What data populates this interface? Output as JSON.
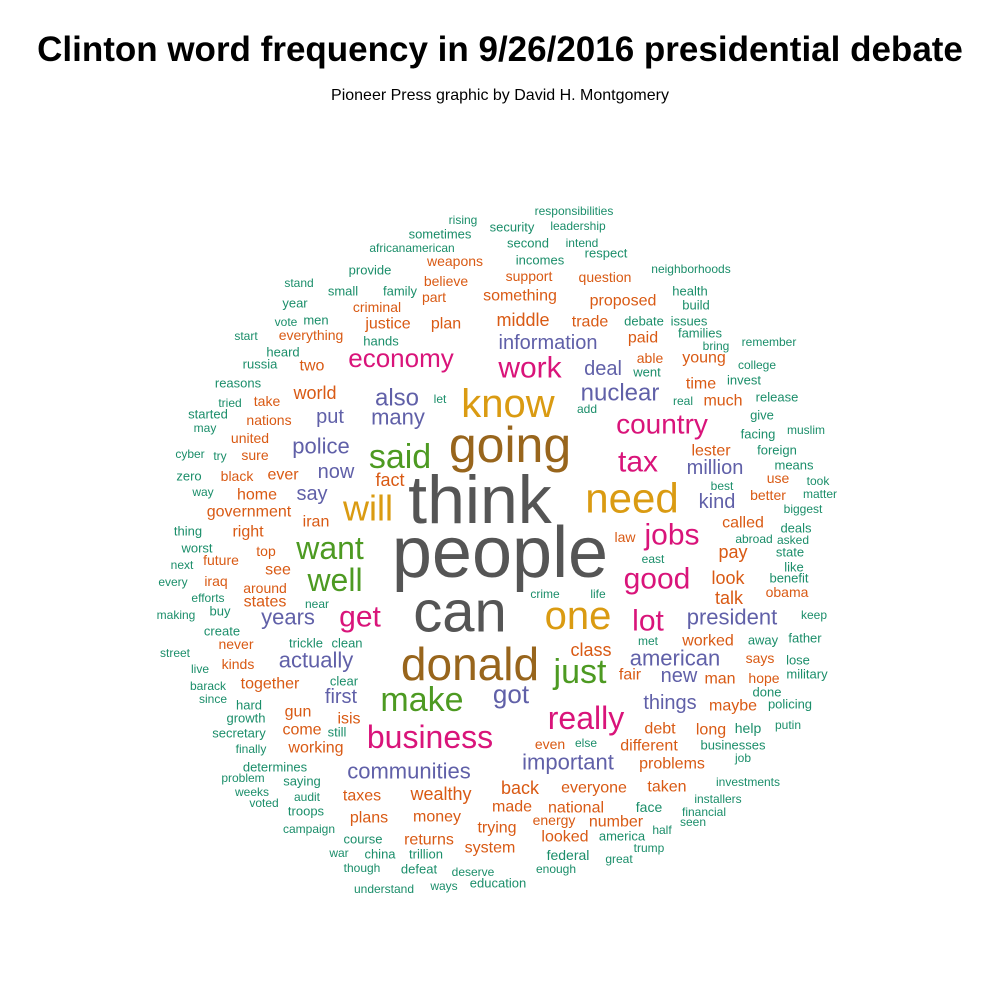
{
  "chart_data": {
    "type": "wordcloud",
    "title": "Clinton word frequency in 9/26/2016 presidential debate",
    "subtitle": "Pioneer Press graphic by David H. Montgomery",
    "words": [
      [
        "people",
        72
      ],
      [
        "think",
        68
      ],
      [
        "can",
        58
      ],
      [
        "going",
        50
      ],
      [
        "donald",
        46
      ],
      [
        "need",
        42
      ],
      [
        "know",
        40
      ],
      [
        "one",
        40
      ],
      [
        "will",
        36
      ],
      [
        "said",
        34
      ],
      [
        "well",
        32
      ],
      [
        "want",
        32
      ],
      [
        "just",
        34
      ],
      [
        "make",
        34
      ],
      [
        "really",
        32
      ],
      [
        "business",
        32
      ],
      [
        "work",
        30
      ],
      [
        "get",
        30
      ],
      [
        "good",
        30
      ],
      [
        "lot",
        30
      ],
      [
        "jobs",
        30
      ],
      [
        "tax",
        30
      ],
      [
        "country",
        28
      ],
      [
        "economy",
        26
      ],
      [
        "got",
        26
      ],
      [
        "also",
        24
      ],
      [
        "nuclear",
        24
      ],
      [
        "president",
        22
      ],
      [
        "years",
        22
      ],
      [
        "important",
        22
      ],
      [
        "american",
        22
      ],
      [
        "communities",
        22
      ],
      [
        "many",
        22
      ],
      [
        "police",
        22
      ],
      [
        "actually",
        22
      ],
      [
        "things",
        20
      ],
      [
        "information",
        20
      ],
      [
        "deal",
        20
      ],
      [
        "first",
        20
      ],
      [
        "put",
        20
      ],
      [
        "new",
        20
      ],
      [
        "now",
        20
      ],
      [
        "say",
        20
      ],
      [
        "million",
        20
      ],
      [
        "kind",
        20
      ],
      [
        "middle",
        18
      ],
      [
        "world",
        18
      ],
      [
        "fact",
        18
      ],
      [
        "back",
        18
      ],
      [
        "wealthy",
        18
      ],
      [
        "look",
        18
      ],
      [
        "talk",
        18
      ],
      [
        "class",
        18
      ],
      [
        "pay",
        18
      ],
      [
        "called",
        16
      ],
      [
        "iran",
        16
      ],
      [
        "right",
        16
      ],
      [
        "see",
        16
      ],
      [
        "states",
        16
      ],
      [
        "home",
        16
      ],
      [
        "ever",
        16
      ],
      [
        "together",
        16
      ],
      [
        "debt",
        16
      ],
      [
        "everyone",
        16
      ],
      [
        "national",
        16
      ],
      [
        "money",
        16
      ],
      [
        "trying",
        16
      ],
      [
        "something",
        16
      ],
      [
        "trade",
        16
      ],
      [
        "taxes",
        16
      ],
      [
        "problems",
        16
      ],
      [
        "different",
        16
      ],
      [
        "worked",
        16
      ],
      [
        "plan",
        16
      ],
      [
        "justice",
        16
      ],
      [
        "isis",
        16
      ],
      [
        "gun",
        16
      ],
      [
        "come",
        16
      ],
      [
        "working",
        16
      ],
      [
        "government",
        16
      ],
      [
        "lester",
        16
      ],
      [
        "much",
        16
      ],
      [
        "paid",
        16
      ],
      [
        "young",
        16
      ],
      [
        "two",
        16
      ],
      [
        "proposed",
        16
      ],
      [
        "time",
        16
      ],
      [
        "able",
        14
      ],
      [
        "made",
        16
      ],
      [
        "plans",
        16
      ],
      [
        "returns",
        16
      ],
      [
        "system",
        16
      ],
      [
        "number",
        16
      ],
      [
        "looked",
        16
      ],
      [
        "energy",
        14
      ],
      [
        "taken",
        16
      ],
      [
        "maybe",
        16
      ],
      [
        "long",
        16
      ],
      [
        "man",
        16
      ],
      [
        "fair",
        16
      ],
      [
        "says",
        14
      ],
      [
        "obama",
        14
      ],
      [
        "law",
        14
      ],
      [
        "better",
        14
      ],
      [
        "use",
        14
      ],
      [
        "hope",
        14
      ],
      [
        "even",
        14
      ],
      [
        "criminal",
        14
      ],
      [
        "part",
        14
      ],
      [
        "believe",
        14
      ],
      [
        "weapons",
        14
      ],
      [
        "support",
        14
      ],
      [
        "question",
        14
      ],
      [
        "everything",
        14
      ],
      [
        "take",
        14
      ],
      [
        "nations",
        14
      ],
      [
        "united",
        14
      ],
      [
        "sure",
        14
      ],
      [
        "black",
        14
      ],
      [
        "future",
        14
      ],
      [
        "top",
        14
      ],
      [
        "iraq",
        14
      ],
      [
        "around",
        14
      ],
      [
        "never",
        14
      ],
      [
        "kinds",
        14
      ],
      [
        "help",
        14
      ],
      [
        "face",
        14
      ],
      [
        "businesses",
        13
      ],
      [
        "federal",
        14
      ],
      [
        "still",
        13
      ],
      [
        "clear",
        13
      ],
      [
        "clean",
        13
      ],
      [
        "trickle",
        13
      ],
      [
        "security",
        13
      ],
      [
        "second",
        13
      ],
      [
        "incomes",
        13
      ],
      [
        "sometimes",
        13
      ],
      [
        "respect",
        13
      ],
      [
        "provide",
        13
      ],
      [
        "small",
        13
      ],
      [
        "family",
        13
      ],
      [
        "men",
        13
      ],
      [
        "hands",
        13
      ],
      [
        "year",
        13
      ],
      [
        "heard",
        13
      ],
      [
        "russia",
        13
      ],
      [
        "reasons",
        13
      ],
      [
        "started",
        13
      ],
      [
        "zero",
        13
      ],
      [
        "thing",
        13
      ],
      [
        "worst",
        13
      ],
      [
        "create",
        13
      ],
      [
        "buy",
        13
      ],
      [
        "secretary",
        13
      ],
      [
        "growth",
        13
      ],
      [
        "hard",
        13
      ],
      [
        "determines",
        13
      ],
      [
        "saying",
        13
      ],
      [
        "troops",
        13
      ],
      [
        "trillion",
        13
      ],
      [
        "course",
        13
      ],
      [
        "china",
        13
      ],
      [
        "defeat",
        13
      ],
      [
        "education",
        13
      ],
      [
        "america",
        13
      ],
      [
        "deals",
        13
      ],
      [
        "state",
        13
      ],
      [
        "benefit",
        13
      ],
      [
        "give",
        13
      ],
      [
        "facing",
        13
      ],
      [
        "foreign",
        13
      ],
      [
        "means",
        13
      ],
      [
        "invest",
        13
      ],
      [
        "went",
        13
      ],
      [
        "release",
        13
      ],
      [
        "families",
        13
      ],
      [
        "health",
        13
      ],
      [
        "build",
        13
      ],
      [
        "debate",
        13
      ],
      [
        "issues",
        13
      ],
      [
        "like",
        13
      ],
      [
        "away",
        13
      ],
      [
        "father",
        13
      ],
      [
        "lose",
        13
      ],
      [
        "military",
        13
      ],
      [
        "done",
        13
      ],
      [
        "policing",
        13
      ],
      [
        "responsibilities",
        12
      ],
      [
        "leadership",
        12
      ],
      [
        "intend",
        12
      ],
      [
        "rising",
        12
      ],
      [
        "africanamerican",
        12
      ],
      [
        "neighborhoods",
        12
      ],
      [
        "stand",
        12
      ],
      [
        "vote",
        12
      ],
      [
        "start",
        12
      ],
      [
        "tried",
        12
      ],
      [
        "may",
        12
      ],
      [
        "cyber",
        12
      ],
      [
        "try",
        12
      ],
      [
        "way",
        12
      ],
      [
        "next",
        12
      ],
      [
        "every",
        12
      ],
      [
        "efforts",
        12
      ],
      [
        "making",
        12
      ],
      [
        "street",
        12
      ],
      [
        "live",
        12
      ],
      [
        "barack",
        12
      ],
      [
        "since",
        12
      ],
      [
        "finally",
        12
      ],
      [
        "problem",
        12
      ],
      [
        "weeks",
        12
      ],
      [
        "voted",
        12
      ],
      [
        "audit",
        12
      ],
      [
        "campaign",
        12
      ],
      [
        "war",
        12
      ],
      [
        "though",
        12
      ],
      [
        "understand",
        12
      ],
      [
        "ways",
        12
      ],
      [
        "deserve",
        12
      ],
      [
        "enough",
        12
      ],
      [
        "great",
        12
      ],
      [
        "trump",
        12
      ],
      [
        "half",
        12
      ],
      [
        "seen",
        12
      ],
      [
        "financial",
        12
      ],
      [
        "installers",
        12
      ],
      [
        "investments",
        12
      ],
      [
        "job",
        12
      ],
      [
        "putin",
        12
      ],
      [
        "keep",
        12
      ],
      [
        "biggest",
        12
      ],
      [
        "matter",
        12
      ],
      [
        "took",
        12
      ],
      [
        "muslim",
        12
      ],
      [
        "college",
        12
      ],
      [
        "remember",
        12
      ],
      [
        "bring",
        12
      ],
      [
        "real",
        12
      ],
      [
        "add",
        12
      ],
      [
        "let",
        12
      ],
      [
        "best",
        12
      ],
      [
        "abroad",
        12
      ],
      [
        "asked",
        12
      ],
      [
        "east",
        12
      ],
      [
        "met",
        12
      ],
      [
        "life",
        12
      ],
      [
        "crime",
        12
      ],
      [
        "near",
        12
      ],
      [
        "else",
        12
      ]
    ]
  },
  "colors": {
    "gray": "#555555",
    "brown": "#98651c",
    "gold": "#da9b12",
    "green": "#4d9a22",
    "magenta": "#d9147a",
    "purple": "#6060a8",
    "orange": "#d95a14",
    "teal": "#1b8e6a"
  }
}
